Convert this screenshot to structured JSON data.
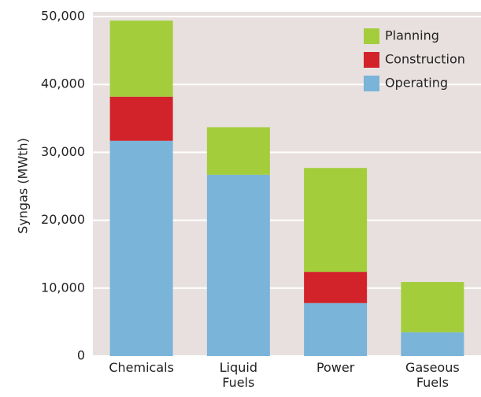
{
  "chart_data": {
    "type": "stacked_bar",
    "y_label": "Syngas (MWth)",
    "categories": [
      "Chemicals",
      "Liquid Fuels",
      "Power",
      "Gaseous Fuels"
    ],
    "series": [
      {
        "name": "Operating",
        "color": "#7ab4d8",
        "values": [
          31700,
          26700,
          7800,
          3500
        ]
      },
      {
        "name": "Construction",
        "color": "#d2232a",
        "values": [
          6500,
          0,
          4600,
          0
        ]
      },
      {
        "name": "Planning",
        "color": "#a3cd3b",
        "values": [
          11200,
          7000,
          15300,
          7400
        ]
      }
    ],
    "ylim": [
      0,
      50000
    ],
    "yticks": [
      0,
      {
        "value": 10000,
        "label": "10,000"
      },
      {
        "value": 20000,
        "label": "20,000"
      },
      {
        "value": 30000,
        "label": "30,000"
      },
      {
        "value": 40000,
        "label": "40,000"
      },
      {
        "value": 50000,
        "label": "50,000"
      }
    ],
    "grid": true,
    "legend": "upper right"
  }
}
